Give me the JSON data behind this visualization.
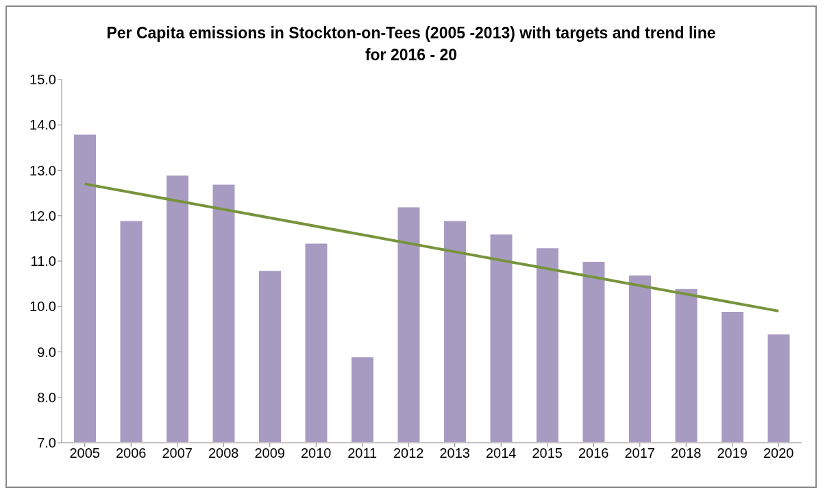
{
  "chart_data": {
    "type": "bar",
    "title": "Per Capita emissions in Stockton-on-Tees (2005 -2013) with targets and trend line for 2016 - 20",
    "categories": [
      "2005",
      "2006",
      "2007",
      "2008",
      "2009",
      "2010",
      "2011",
      "2012",
      "2013",
      "2014",
      "2015",
      "2016",
      "2017",
      "2018",
      "2019",
      "2020"
    ],
    "series": [
      {
        "color": "#a89bc2",
        "values": [
          13.8,
          11.9,
          12.9,
          12.7,
          10.8,
          11.4,
          8.9,
          12.2,
          11.9,
          11.6,
          11.3,
          11.0,
          10.7,
          10.4,
          9.9,
          9.4
        ]
      },
      {
        "type": "line",
        "color": "#77933c",
        "values": [
          12.7,
          null,
          null,
          null,
          null,
          null,
          null,
          null,
          null,
          null,
          null,
          null,
          null,
          null,
          null,
          9.9
        ]
      }
    ],
    "ylim": [
      7,
      15
    ],
    "yticks": [
      {
        "value": 7,
        "label": "7.0"
      },
      {
        "value": 8,
        "label": "8.0"
      },
      {
        "value": 9,
        "label": "9.0"
      },
      {
        "value": 10,
        "label": "10.0"
      },
      {
        "value": 11,
        "label": "11.0"
      },
      {
        "value": 12,
        "label": "12.0"
      },
      {
        "value": 13,
        "label": "13.0"
      },
      {
        "value": 14,
        "label": "14.0"
      },
      {
        "value": 15,
        "label": "15.0"
      }
    ],
    "grid": false,
    "legend": false
  }
}
